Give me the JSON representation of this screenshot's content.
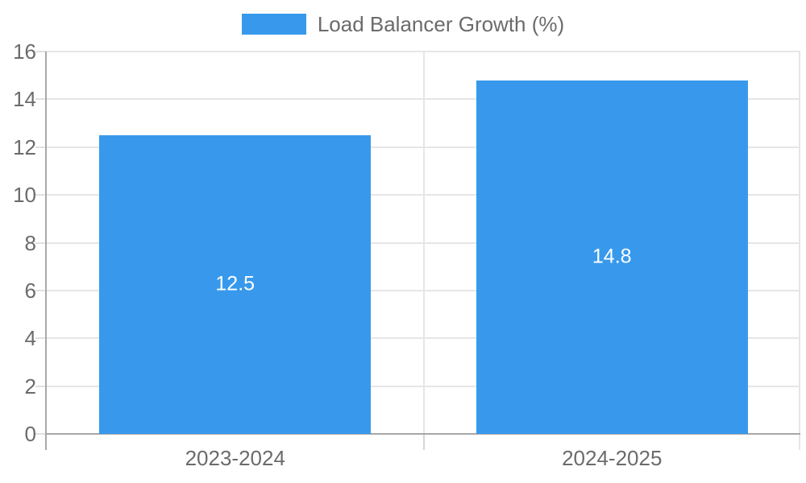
{
  "legend": {
    "label": "Load Balancer Growth (%)"
  },
  "colors": {
    "bar": "#3899EC",
    "gridline": "#e6e6e6",
    "tickmark": "#e0e0e0",
    "axis": "#a8a8a8",
    "category_tick": "#d6d6d6",
    "text": "#6b6b6b",
    "value_label_text": "#ffffff"
  },
  "chart_data": {
    "type": "bar",
    "title": "Load Balancer Growth (%)",
    "categories": [
      "2023-2024",
      "2024-2025"
    ],
    "series": [
      {
        "name": "Load Balancer Growth (%)",
        "values": [
          12.5,
          14.8
        ]
      }
    ],
    "values": [
      12.5,
      14.8
    ],
    "data_labels": [
      "12.5",
      "14.8"
    ],
    "xlabel": "",
    "ylabel": "",
    "ylim": [
      0,
      16
    ],
    "yticks": [
      0,
      2,
      4,
      6,
      8,
      10,
      12,
      14,
      16
    ],
    "grid": true,
    "legend_position": "top-center",
    "value_labels_inside_bars": true
  }
}
